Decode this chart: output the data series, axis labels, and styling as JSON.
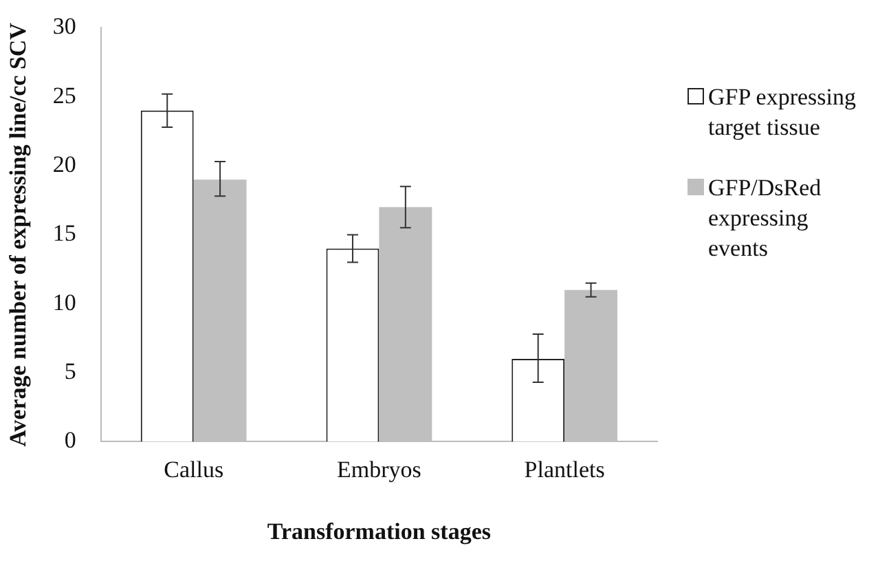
{
  "chart_data": {
    "type": "bar",
    "xlabel": "Transformation stages",
    "ylabel": "Average number of expressing line/cc SCV",
    "categories": [
      "Callus",
      "Embryos",
      "Plantlets"
    ],
    "series": [
      {
        "name": "GFP expressing target tissue",
        "color": "#ffffff",
        "values": [
          24,
          14,
          6
        ],
        "errors": [
          [
            22.8,
            25.2
          ],
          [
            13,
            15
          ],
          [
            4.3,
            7.8
          ]
        ]
      },
      {
        "name": "GFP/DsRed expressing events",
        "color": "#bfbfbf",
        "values": [
          19,
          17,
          11
        ],
        "errors": [
          [
            17.8,
            20.3
          ],
          [
            15.5,
            18.5
          ],
          [
            10.5,
            11.5
          ]
        ]
      }
    ],
    "ylim": [
      0,
      30
    ],
    "yticks": [
      0,
      5,
      10,
      15,
      20,
      25,
      30
    ],
    "grid": false,
    "legend": "right"
  }
}
